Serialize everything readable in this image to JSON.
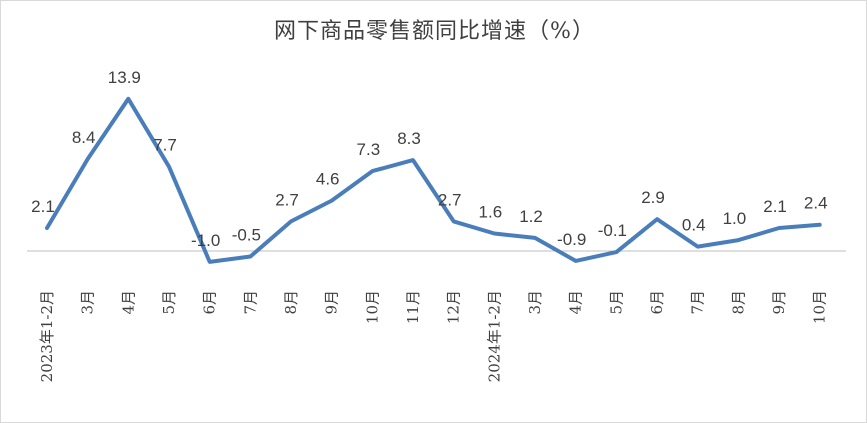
{
  "chart_data": {
    "type": "line",
    "title": "网下商品零售额同比增速（%）",
    "xlabel": "",
    "ylabel": "",
    "categories": [
      "2023年1-2月",
      "3月",
      "4月",
      "5月",
      "6月",
      "7月",
      "8月",
      "9月",
      "10月",
      "11月",
      "12月",
      "2024年1-2月",
      "3月",
      "4月",
      "5月",
      "6月",
      "7月",
      "8月",
      "9月",
      "10月"
    ],
    "series": [
      {
        "values": [
          2.1,
          8.4,
          13.9,
          7.7,
          -1.0,
          -0.5,
          2.7,
          4.6,
          7.3,
          8.3,
          2.7,
          1.6,
          1.2,
          -0.9,
          -0.1,
          2.9,
          0.4,
          1.0,
          2.1,
          2.4
        ]
      }
    ],
    "data_labels": [
      "2.1",
      "8.4",
      "13.9",
      "7.7",
      "-1.0",
      "-0.5",
      "2.7",
      "4.6",
      "7.3",
      "8.3",
      "2.7",
      "1.6",
      "1.2",
      "-0.9",
      "-0.1",
      "2.9",
      "0.4",
      "1.0",
      "2.1",
      "2.4"
    ],
    "ylim": [
      -1.2,
      15
    ],
    "grid": false,
    "legend": "none",
    "colors": {
      "line": "#4a7ebb",
      "axis": "#bfbfbf",
      "text": "#404040"
    }
  }
}
